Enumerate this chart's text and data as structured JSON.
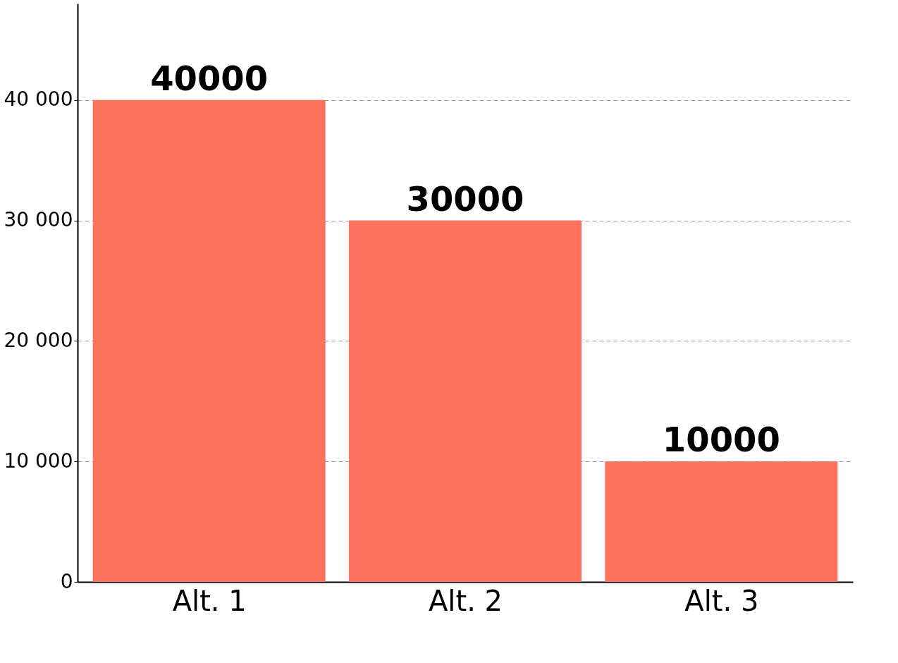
{
  "chart_data": {
    "type": "bar",
    "categories": [
      "Alt. 1",
      "Alt. 2",
      "Alt. 3"
    ],
    "values": [
      40000,
      30000,
      10000
    ],
    "color": "#fe735e",
    "ylim": [
      0,
      48000
    ],
    "yticks": [
      0,
      {
        "value": 10000,
        "label": "10 000"
      },
      {
        "value": 20000,
        "label": "20 000"
      },
      {
        "value": 30000,
        "label": "30 000"
      },
      {
        "value": 40000,
        "label": "40 000"
      }
    ],
    "grid": "y",
    "line_style": "dashed",
    "data_labels": true
  }
}
